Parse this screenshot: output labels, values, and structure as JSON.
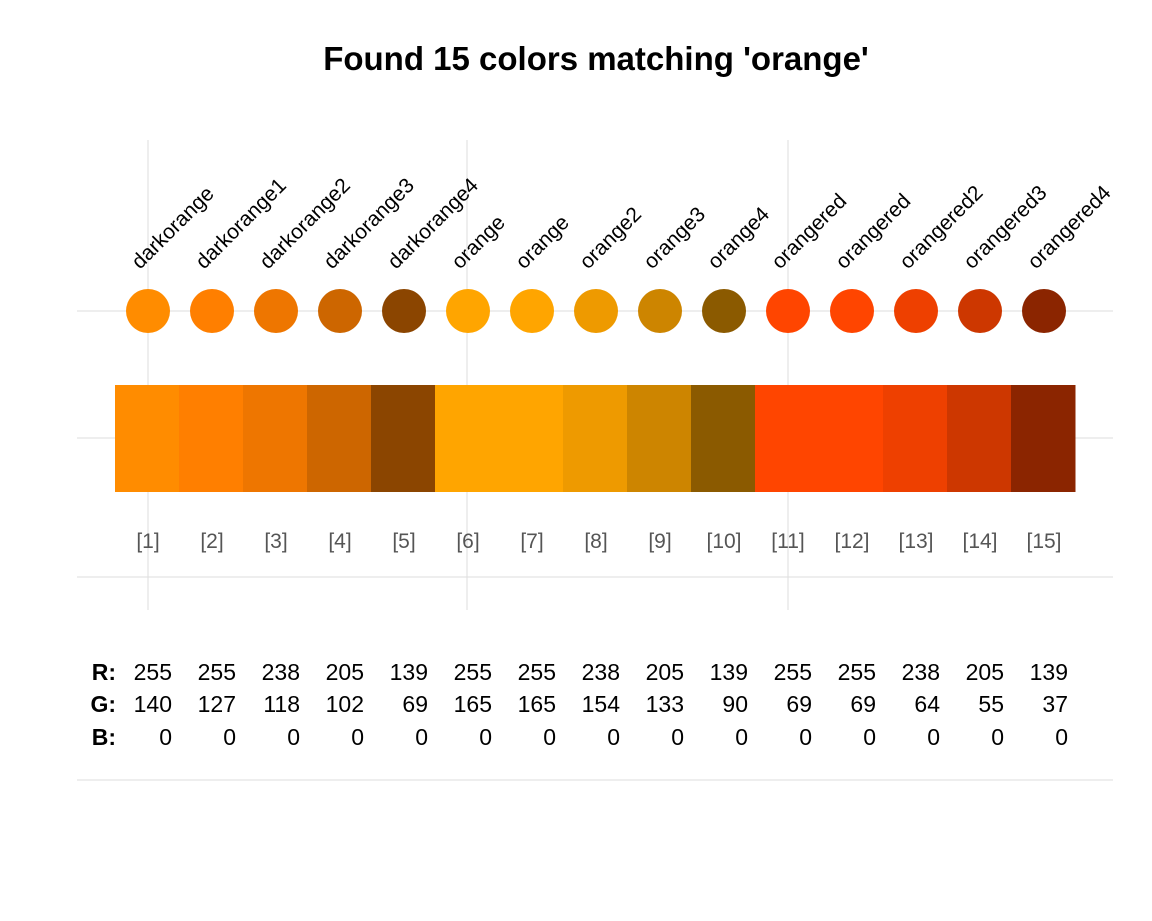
{
  "chart_data": {
    "type": "table",
    "title": "Found 15 colors matching 'orange'",
    "grid": true,
    "colors": [
      {
        "index": "[1]",
        "name": "darkorange",
        "hex": "#FF8C00",
        "r": 255,
        "g": 140,
        "b": 0
      },
      {
        "index": "[2]",
        "name": "darkorange1",
        "hex": "#FF7F00",
        "r": 255,
        "g": 127,
        "b": 0
      },
      {
        "index": "[3]",
        "name": "darkorange2",
        "hex": "#EE7600",
        "r": 238,
        "g": 118,
        "b": 0
      },
      {
        "index": "[4]",
        "name": "darkorange3",
        "hex": "#CD6600",
        "r": 205,
        "g": 102,
        "b": 0
      },
      {
        "index": "[5]",
        "name": "darkorange4",
        "hex": "#8B4500",
        "r": 139,
        "g": 69,
        "b": 0
      },
      {
        "index": "[6]",
        "name": "orange",
        "hex": "#FFA500",
        "r": 255,
        "g": 165,
        "b": 0
      },
      {
        "index": "[7]",
        "name": "orange",
        "hex": "#FFA500",
        "r": 255,
        "g": 165,
        "b": 0
      },
      {
        "index": "[8]",
        "name": "orange2",
        "hex": "#EE9A00",
        "r": 238,
        "g": 154,
        "b": 0
      },
      {
        "index": "[9]",
        "name": "orange3",
        "hex": "#CD8500",
        "r": 205,
        "g": 133,
        "b": 0
      },
      {
        "index": "[10]",
        "name": "orange4",
        "hex": "#8B5A00",
        "r": 139,
        "g": 90,
        "b": 0
      },
      {
        "index": "[11]",
        "name": "orangered",
        "hex": "#FF4500",
        "r": 255,
        "g": 69,
        "b": 0
      },
      {
        "index": "[12]",
        "name": "orangered",
        "hex": "#FF4500",
        "r": 255,
        "g": 69,
        "b": 0
      },
      {
        "index": "[13]",
        "name": "orangered2",
        "hex": "#EE4000",
        "r": 238,
        "g": 64,
        "b": 0
      },
      {
        "index": "[14]",
        "name": "orangered3",
        "hex": "#CD3700",
        "r": 205,
        "g": 55,
        "b": 0
      },
      {
        "index": "[15]",
        "name": "orangered4",
        "hex": "#8B2500",
        "r": 139,
        "g": 37,
        "b": 0
      }
    ],
    "rgb_labels": {
      "r": "R:",
      "g": "G:",
      "b": "B:"
    }
  }
}
